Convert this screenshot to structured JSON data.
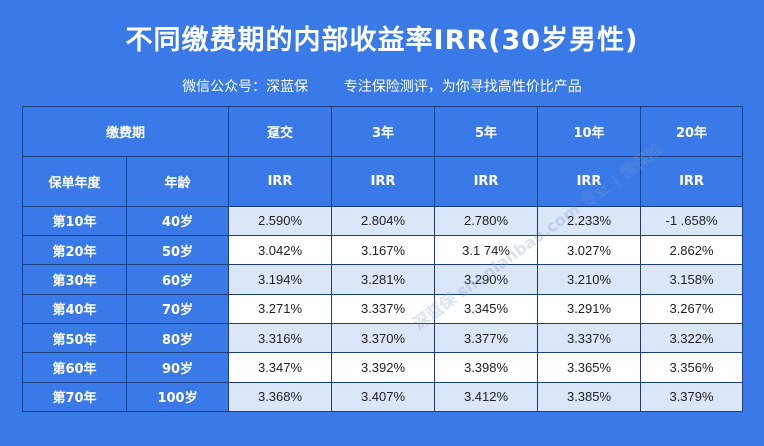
{
  "title": "不同缴费期的内部收益率IRR(30岁男性)",
  "subtitle": "微信公众号：深蓝保        专注保险测评，为你寻找高性价比产品",
  "table": {
    "header1": {
      "period_label": "缴费期",
      "periods": [
        "趸交",
        "3年",
        "5年",
        "10年",
        "20年"
      ]
    },
    "header2": {
      "year_label": "保单年度",
      "age_label": "年龄",
      "irr_labels": [
        "IRR",
        "IRR",
        "IRR",
        "IRR",
        "IRR"
      ]
    },
    "rows": [
      {
        "year": "第10年",
        "age": "40岁",
        "values": [
          "2.590%",
          "2.804%",
          "2.780%",
          "2.233%",
          "-1 .658%"
        ]
      },
      {
        "year": "第20年",
        "age": "50岁",
        "values": [
          "3.042%",
          "3.167%",
          "3.1 74%",
          "3.027%",
          "2.862%"
        ]
      },
      {
        "year": "第30年",
        "age": "60岁",
        "values": [
          "3.194%",
          "3.281%",
          "3.290%",
          "3.210%",
          "3.158%"
        ]
      },
      {
        "year": "第40年",
        "age": "70岁",
        "values": [
          "3.271%",
          "3.337%",
          "3.345%",
          "3.291%",
          "3.267%"
        ]
      },
      {
        "year": "第50年",
        "age": "80岁",
        "values": [
          "3.316%",
          "3.370%",
          "3.377%",
          "3.337%",
          "3.322%"
        ]
      },
      {
        "year": "第60年",
        "age": "90岁",
        "values": [
          "3.347%",
          "3.392%",
          "3.398%",
          "3.365%",
          "3.356%"
        ]
      },
      {
        "year": "第70年",
        "age": "100岁",
        "values": [
          "3.368%",
          "3.407%",
          "3.412%",
          "3.385%",
          "3.379%"
        ]
      }
    ]
  },
  "watermark": "深蓝保  shenlanbao.com  专业 | 懂保险",
  "colors": {
    "background": "#3a7ae8",
    "header_bg": "#3a7ae8",
    "row_alt_bg": "#dbe6f8",
    "border": "#1c3f82"
  }
}
